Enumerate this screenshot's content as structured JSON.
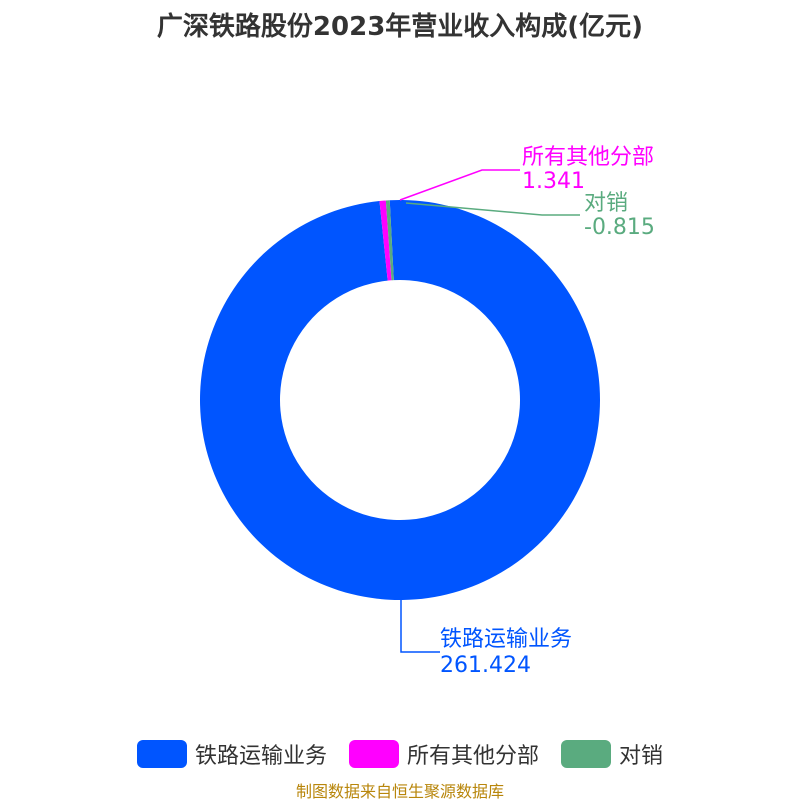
{
  "chart_data": {
    "type": "pie",
    "title": "广深铁路股份2023年营业收入构成(亿元)",
    "slices": [
      {
        "label": "铁路运输业务",
        "value": 261.424,
        "value_text": "261.424",
        "color": "#0055ff"
      },
      {
        "label": "所有其他分部",
        "value": 1.341,
        "value_text": "1.341",
        "color": "#ff00ff"
      },
      {
        "label": "对销",
        "value": -0.815,
        "value_text": "-0.815",
        "color": "#5aab7f"
      }
    ],
    "legend_position": "bottom"
  },
  "source": "制图数据来自恒生聚源数据库"
}
